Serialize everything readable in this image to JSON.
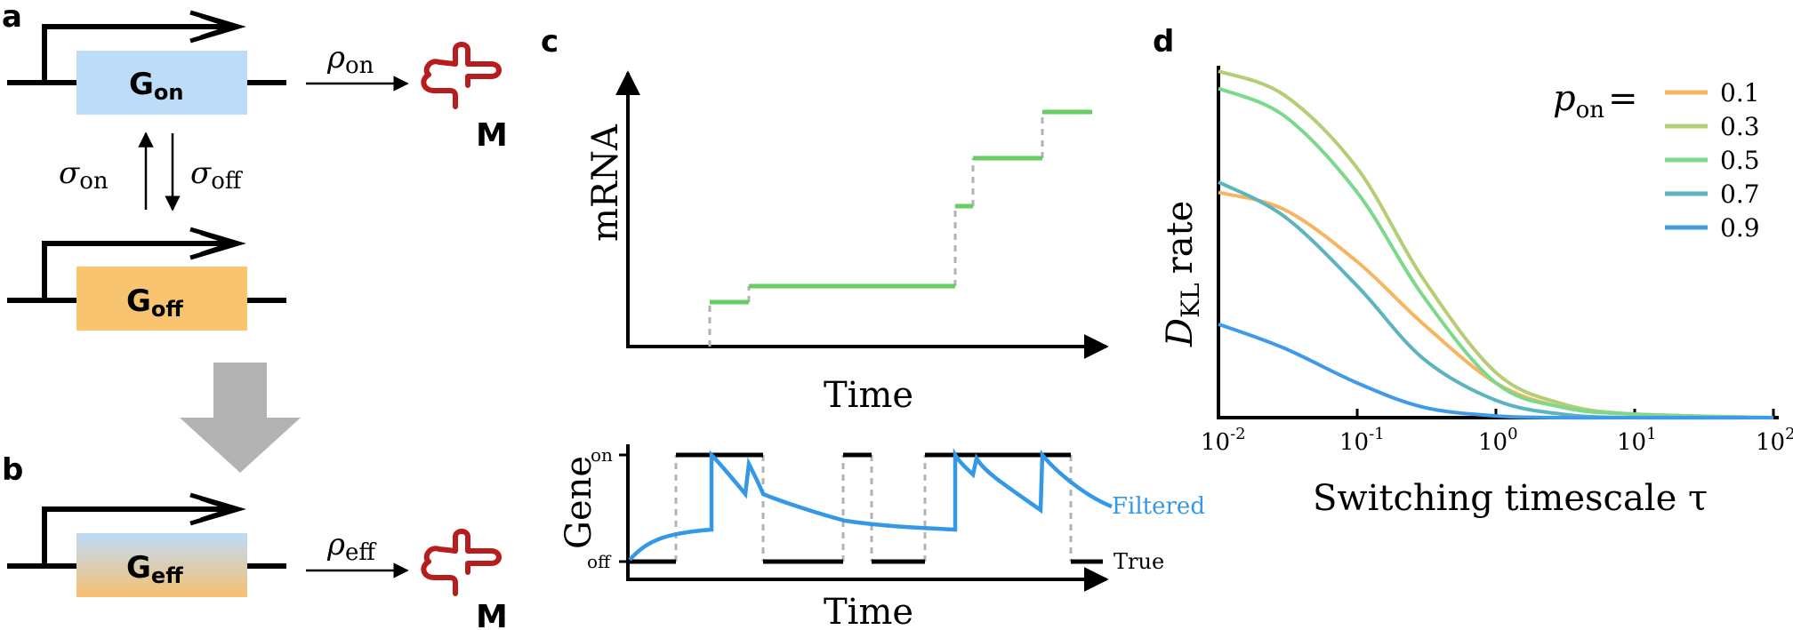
{
  "figure": {
    "panel_a": {
      "letter": "a",
      "gene_on_main": "G",
      "gene_on_sub": "on",
      "gene_off_main": "G",
      "gene_off_sub": "off",
      "rate_main": "ρ",
      "rate_sub": "on",
      "switch_on_main": "σ",
      "switch_on_sub": "on",
      "switch_off_main": "σ",
      "switch_off_sub": "off",
      "product": "M",
      "colors": {
        "on": "#bcdcf8",
        "off": "#f9c470",
        "mrna": "#b81d1d"
      }
    },
    "panel_b": {
      "letter": "b",
      "gene_main": "G",
      "gene_sub": "eff",
      "rate_main": "ρ",
      "rate_sub": "eff",
      "product": "M"
    },
    "panel_c": {
      "letter": "c",
      "top_ylabel": "mRNA",
      "top_xlabel": "Time",
      "bottom_ylabel": "Gene",
      "bottom_xlabel": "Time",
      "tick_on": "on",
      "tick_off": "off",
      "label_filtered": "Filtered",
      "label_true": "True",
      "colors": {
        "mrna": "#66cc66",
        "filtered": "#3399e6",
        "true": "#000000"
      }
    },
    "panel_d": {
      "letter": "d",
      "xlabel": "Switching timescale τ",
      "ylabel_main": "D",
      "ylabel_sub": "KL",
      "ylabel_rest": "rate",
      "legend_title_main": "p",
      "legend_title_sub": "on",
      "legend_title_eq": "="
    }
  },
  "chart_data": {
    "type": "line",
    "xlabel": "Switching timescale τ",
    "ylabel": "D_KL rate",
    "xscale": "log",
    "xlim": [
      0.01,
      100
    ],
    "xticks": [
      {
        "value": 0.01,
        "base": "10",
        "exp": "-2"
      },
      {
        "value": 0.1,
        "base": "10",
        "exp": "-1"
      },
      {
        "value": 1,
        "base": "10",
        "exp": "0"
      },
      {
        "value": 10,
        "base": "10",
        "exp": "1"
      },
      {
        "value": 100,
        "base": "10",
        "exp": "2"
      }
    ],
    "ylim": [
      0,
      1
    ],
    "legend_placement": "top-right",
    "grid": false,
    "series": [
      {
        "name": "0.1",
        "color": "#f6b560",
        "x": [
          0.01,
          0.03,
          0.1,
          0.3,
          1,
          3,
          10,
          100
        ],
        "y": [
          0.65,
          0.6,
          0.45,
          0.27,
          0.1,
          0.03,
          0.01,
          0.0
        ]
      },
      {
        "name": "0.3",
        "color": "#b5cd75",
        "x": [
          0.01,
          0.03,
          0.1,
          0.3,
          1,
          3,
          10,
          100
        ],
        "y": [
          1.0,
          0.93,
          0.72,
          0.4,
          0.13,
          0.04,
          0.01,
          0.0
        ]
      },
      {
        "name": "0.5",
        "color": "#7cd98c",
        "x": [
          0.01,
          0.03,
          0.1,
          0.3,
          1,
          3,
          10,
          100
        ],
        "y": [
          0.95,
          0.87,
          0.65,
          0.35,
          0.1,
          0.03,
          0.01,
          0.0
        ]
      },
      {
        "name": "0.7",
        "color": "#5bb4c0",
        "x": [
          0.01,
          0.03,
          0.1,
          0.3,
          1,
          3,
          10,
          100
        ],
        "y": [
          0.68,
          0.58,
          0.38,
          0.17,
          0.05,
          0.01,
          0.0,
          0.0
        ]
      },
      {
        "name": "0.9",
        "color": "#3f9be8",
        "x": [
          0.01,
          0.03,
          0.1,
          0.3,
          1,
          3,
          10,
          100
        ],
        "y": [
          0.27,
          0.2,
          0.1,
          0.03,
          0.005,
          0.0,
          0.0,
          0.0
        ]
      }
    ]
  }
}
